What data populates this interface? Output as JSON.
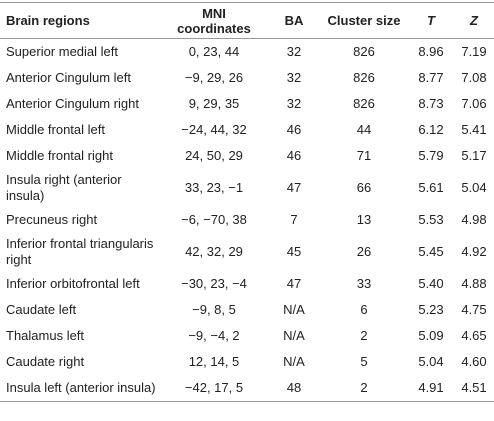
{
  "table": {
    "header": [
      "Brain regions",
      "MNI coordinates",
      "BA",
      "Cluster size",
      "T",
      "Z"
    ],
    "rows": [
      [
        "Superior medial left",
        "0, 23, 44",
        "32",
        "826",
        "8.96",
        "7.19"
      ],
      [
        "Anterior Cingulum left",
        "−9, 29, 26",
        "32",
        "826",
        "8.77",
        "7.08"
      ],
      [
        "Anterior Cingulum right",
        "9, 29, 35",
        "32",
        "826",
        "8.73",
        "7.06"
      ],
      [
        "Middle frontal left",
        "−24, 44, 32",
        "46",
        "44",
        "6.12",
        "5.41"
      ],
      [
        "Middle frontal right",
        "24, 50, 29",
        "46",
        "71",
        "5.79",
        "5.17"
      ],
      [
        "Insula right (anterior insula)",
        "33, 23, −1",
        "47",
        "66",
        "5.61",
        "5.04"
      ],
      [
        "Precuneus right",
        "−6, −70, 38",
        "7",
        "13",
        "5.53",
        "4.98"
      ],
      [
        "Inferior frontal triangularis right",
        "42, 32, 29",
        "45",
        "26",
        "5.45",
        "4.92"
      ],
      [
        "Inferior orbitofrontal left",
        "−30, 23, −4",
        "47",
        "33",
        "5.40",
        "4.88"
      ],
      [
        "Caudate left",
        "−9, 8, 5",
        "N/A",
        "6",
        "5.23",
        "4.75"
      ],
      [
        "Thalamus left",
        "−9, −4, 2",
        "N/A",
        "2",
        "5.09",
        "4.65"
      ],
      [
        "Caudate right",
        "12, 14, 5",
        "N/A",
        "5",
        "5.04",
        "4.60"
      ],
      [
        "Insula left (anterior insula)",
        "−42, 17, 5",
        "48",
        "2",
        "4.91",
        "4.51"
      ]
    ]
  }
}
